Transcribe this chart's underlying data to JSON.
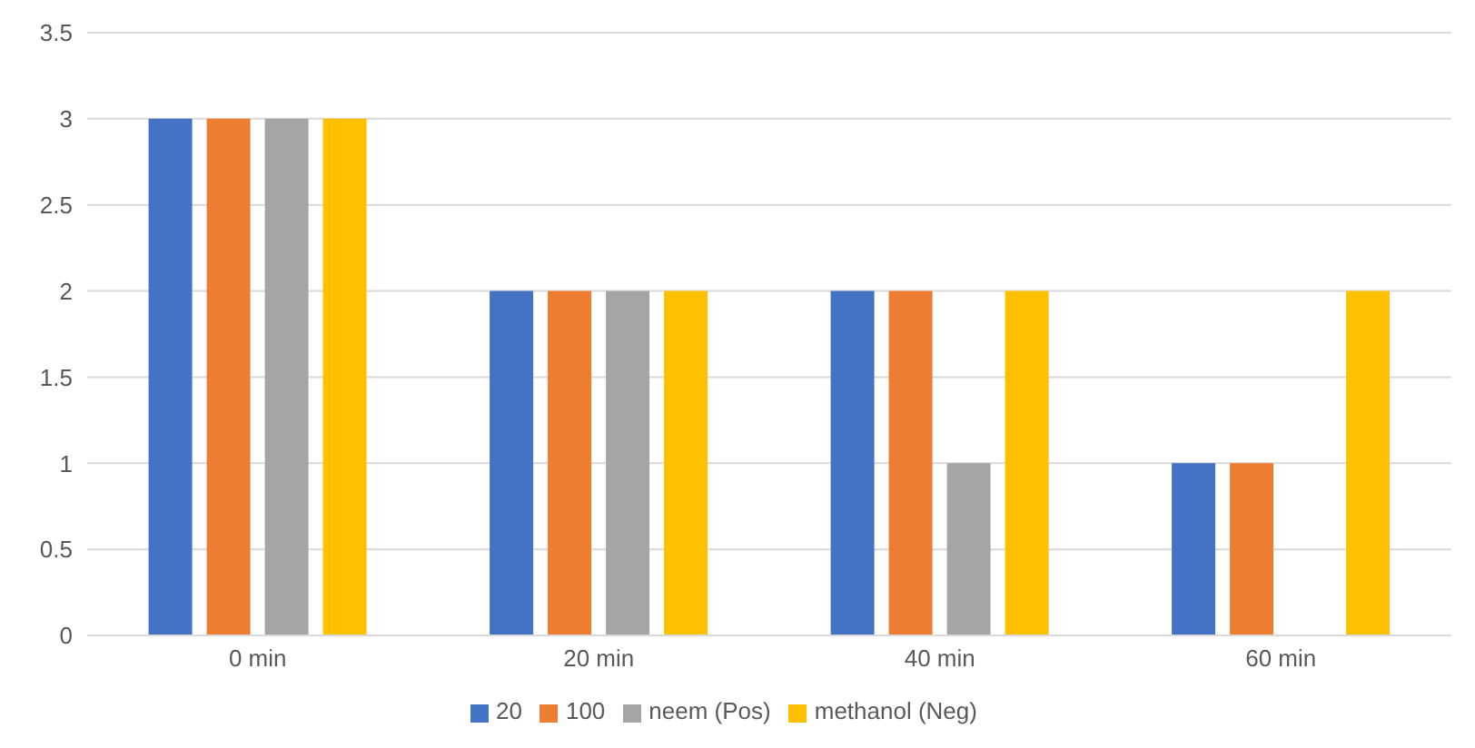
{
  "chart_data": {
    "type": "bar",
    "categories": [
      "0 min",
      "20 min",
      "40 min",
      "60 min"
    ],
    "series": [
      {
        "name": "20",
        "color": "#4472c4",
        "values": [
          3,
          2,
          2,
          1
        ]
      },
      {
        "name": "100",
        "color": "#ed7d31",
        "values": [
          3,
          2,
          2,
          1
        ]
      },
      {
        "name": "neem (Pos)",
        "color": "#a5a5a5",
        "values": [
          3,
          2,
          1,
          0
        ]
      },
      {
        "name": "methanol (Neg)",
        "color": "#ffc000",
        "values": [
          3,
          2,
          2,
          2
        ]
      }
    ],
    "ylim": [
      0,
      3.5
    ],
    "yticks": [
      0,
      0.5,
      1,
      1.5,
      2,
      2.5,
      3,
      3.5
    ],
    "grid": "y",
    "legend": "bottom"
  }
}
